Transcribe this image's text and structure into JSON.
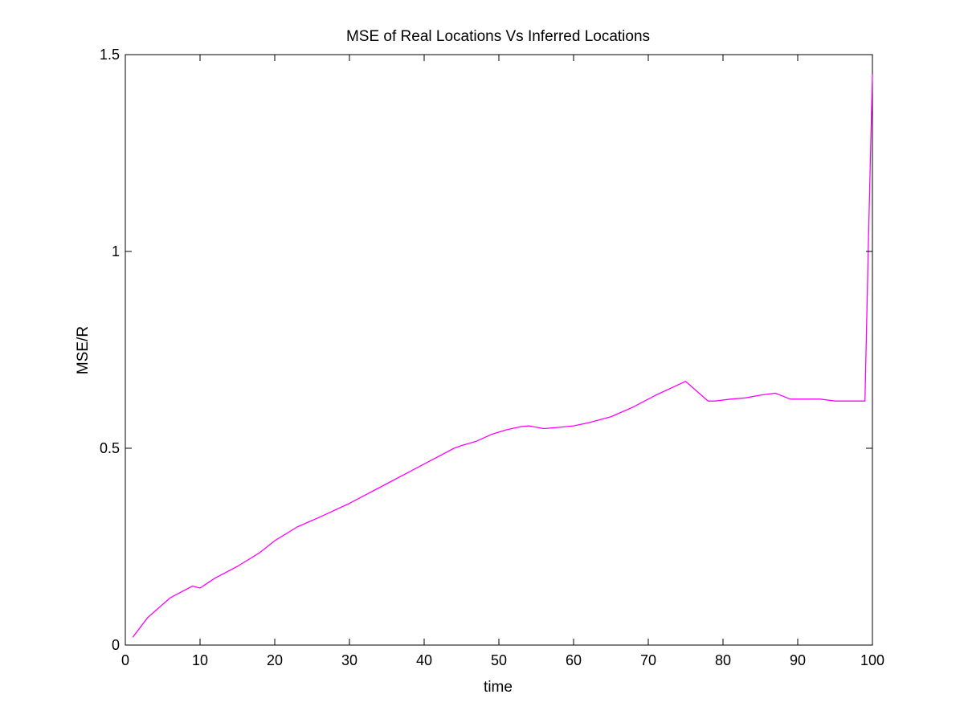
{
  "chart_data": {
    "type": "line",
    "title": "MSE of Real Locations Vs Inferred Locations",
    "xlabel": "time",
    "ylabel": "MSE/R",
    "xlim": [
      0,
      100
    ],
    "ylim": [
      0,
      1.5
    ],
    "xticks": [
      0,
      10,
      20,
      30,
      40,
      50,
      60,
      70,
      80,
      90,
      100
    ],
    "xtick_labels": [
      "0",
      "10",
      "20",
      "30",
      "40",
      "50",
      "60",
      "70",
      "80",
      "90",
      "100"
    ],
    "yticks": [
      0,
      0.5,
      1,
      1.5
    ],
    "ytick_labels": [
      "0",
      "0.5",
      "1",
      "1.5"
    ],
    "grid": false,
    "series": [
      {
        "color": "#ff00ff",
        "x": [
          1,
          3,
          6,
          9,
          10,
          12,
          15,
          18,
          20,
          23,
          26,
          30,
          34,
          38,
          41,
          44,
          45,
          47,
          49,
          51,
          53,
          54,
          56,
          58,
          60,
          62,
          65,
          68,
          71,
          75,
          78,
          79,
          81,
          83,
          85,
          87,
          89,
          91,
          93,
          95,
          97,
          99,
          99.5,
          100
        ],
        "y": [
          0.02,
          0.07,
          0.12,
          0.15,
          0.145,
          0.17,
          0.2,
          0.235,
          0.265,
          0.3,
          0.325,
          0.36,
          0.4,
          0.44,
          0.47,
          0.5,
          0.507,
          0.518,
          0.535,
          0.547,
          0.555,
          0.557,
          0.55,
          0.553,
          0.557,
          0.565,
          0.58,
          0.605,
          0.635,
          0.67,
          0.62,
          0.62,
          0.625,
          0.628,
          0.635,
          0.64,
          0.625,
          0.625,
          0.625,
          0.62,
          0.62,
          0.62,
          1.05,
          1.45
        ]
      }
    ]
  }
}
